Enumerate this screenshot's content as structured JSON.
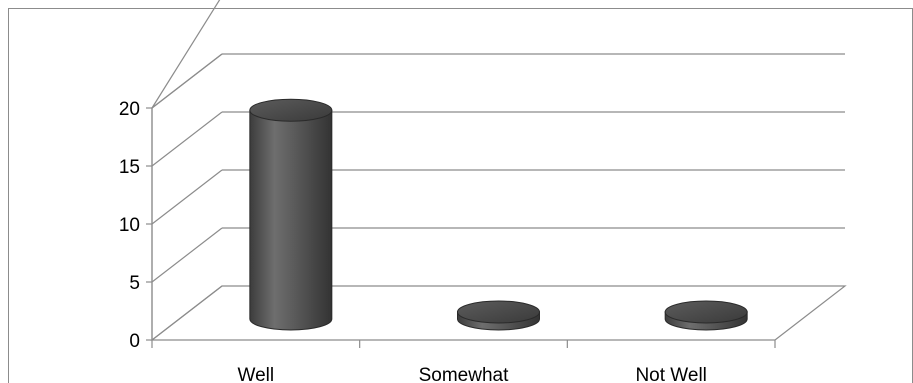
{
  "chart_data": {
    "type": "bar",
    "style": "3d-cylinder",
    "categories": [
      "Well",
      "Somewhat",
      "Not Well"
    ],
    "values": [
      18,
      0,
      0
    ],
    "ylim": [
      0,
      20
    ],
    "yticks": [
      0,
      5,
      10,
      15,
      20
    ],
    "ytick_labels": [
      "0",
      "5",
      "10",
      "15",
      "20"
    ],
    "grid": true,
    "legend": "none",
    "colors": {
      "bar_dark": "#3a3a3a",
      "bar_light": "#6b6b6b",
      "bar_top": "#4a4a4a",
      "grid": "#8c8c8c",
      "axis": "#8c8c8c"
    }
  }
}
